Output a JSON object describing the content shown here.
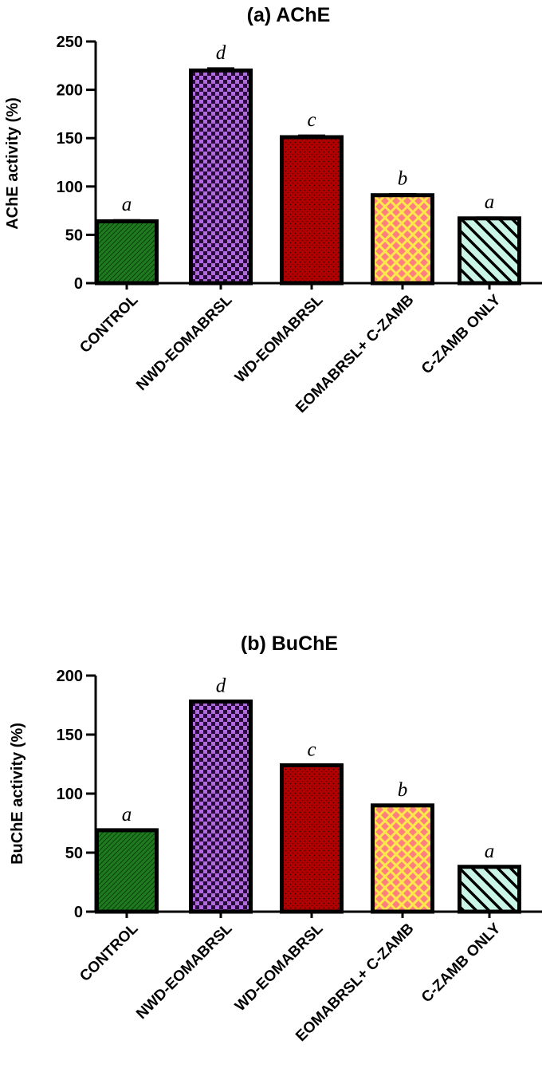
{
  "chart_data": [
    {
      "type": "bar",
      "title": "(a) AChE",
      "xlabel": "",
      "ylabel": "AChE activity (%)",
      "ylim": [
        0,
        250
      ],
      "yticks": [
        0,
        50,
        100,
        150,
        200,
        250
      ],
      "categories": [
        "CONTROL",
        "NWD-EOMABRSL",
        "WD-EOMABRSL",
        "EOMABRSL+ C-ZAMB",
        "C-ZAMB ONLY"
      ],
      "values": [
        64,
        220,
        151,
        91,
        67
      ],
      "errors": [
        1,
        2,
        1.5,
        1,
        0.8
      ],
      "significance_letters": [
        "a",
        "d",
        "c",
        "b",
        "a"
      ],
      "bar_patterns": [
        "green-dots",
        "purple-checker",
        "red-dots",
        "yellow-crosshatch",
        "mint-diagonal"
      ],
      "bar_colors": [
        "#1e7a1e",
        "#b06ae0",
        "#b00000",
        "#ffe84a",
        "#c8f5e6"
      ],
      "grid": false
    },
    {
      "type": "bar",
      "title": "(b) BuChE",
      "xlabel": "",
      "ylabel": "BuChE activity (%)",
      "ylim": [
        0,
        200
      ],
      "yticks": [
        0,
        50,
        100,
        150,
        200
      ],
      "categories": [
        "CONTROL",
        "NWD-EOMABRSL",
        "WD-EOMABRSL",
        "EOMABRSL+ C-ZAMB",
        "C-ZAMB ONLY"
      ],
      "values": [
        69,
        178,
        124,
        90,
        38
      ],
      "errors": [
        0,
        0,
        0,
        0,
        0
      ],
      "significance_letters": [
        "a",
        "d",
        "c",
        "b",
        "a"
      ],
      "bar_patterns": [
        "green-dots",
        "purple-checker",
        "red-dots",
        "yellow-crosshatch",
        "mint-diagonal"
      ],
      "bar_colors": [
        "#1e7a1e",
        "#b06ae0",
        "#b00000",
        "#ffe84a",
        "#c8f5e6"
      ],
      "grid": false
    }
  ]
}
